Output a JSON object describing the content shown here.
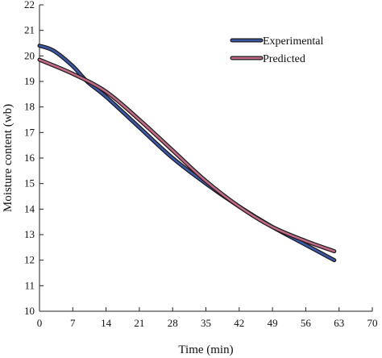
{
  "chart_data": {
    "type": "line",
    "title": "",
    "xlabel": "Time (min)",
    "ylabel": "Moisture content (wb)",
    "xlim": [
      0,
      70
    ],
    "ylim": [
      10,
      22
    ],
    "xticks": [
      0,
      7,
      14,
      21,
      28,
      35,
      42,
      49,
      56,
      63,
      70
    ],
    "yticks": [
      10,
      11,
      12,
      13,
      14,
      15,
      16,
      17,
      18,
      19,
      20,
      21,
      22
    ],
    "grid": false,
    "legend_position": "top-right",
    "series": [
      {
        "name": "Experimental",
        "color": "#3b57a6",
        "points": [
          [
            0,
            20.4
          ],
          [
            3,
            20.2
          ],
          [
            7,
            19.6
          ],
          [
            10,
            19.0
          ],
          [
            14,
            18.4
          ],
          [
            21,
            17.2
          ],
          [
            28,
            16.0
          ],
          [
            35,
            15.0
          ],
          [
            42,
            14.1
          ],
          [
            49,
            13.3
          ],
          [
            56,
            12.6
          ],
          [
            62,
            12.0
          ]
        ]
      },
      {
        "name": "Predicted",
        "color": "#c06a86",
        "points": [
          [
            0,
            19.85
          ],
          [
            7,
            19.3
          ],
          [
            14,
            18.6
          ],
          [
            21,
            17.5
          ],
          [
            28,
            16.3
          ],
          [
            35,
            15.1
          ],
          [
            42,
            14.1
          ],
          [
            49,
            13.3
          ],
          [
            56,
            12.75
          ],
          [
            62,
            12.35
          ]
        ]
      }
    ]
  }
}
